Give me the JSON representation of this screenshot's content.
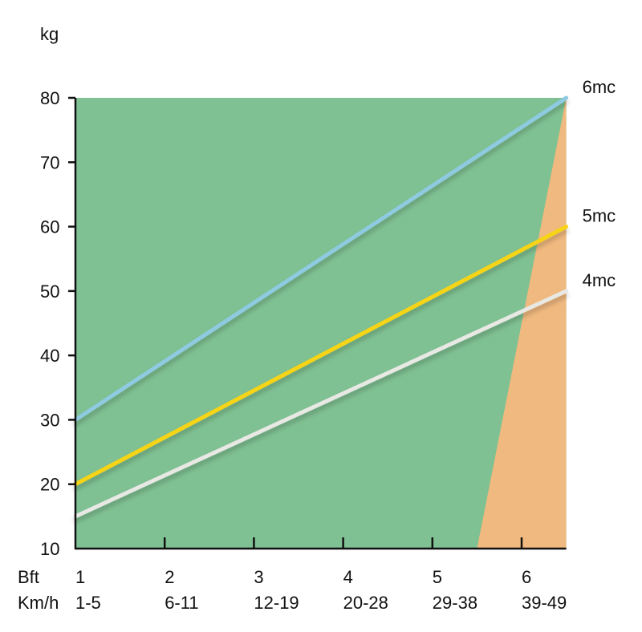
{
  "chart_data": {
    "type": "line",
    "ylabel": "kg",
    "ylim": [
      10,
      80
    ],
    "yticks": [
      10,
      20,
      30,
      40,
      50,
      60,
      70,
      80
    ],
    "xlim": [
      1,
      6.5
    ],
    "xticks": [
      1,
      2,
      3,
      4,
      5,
      6
    ],
    "x_row_labels": [
      "Bft",
      "Km/h"
    ],
    "bft_labels": [
      "1",
      "2",
      "3",
      "4",
      "5",
      "6"
    ],
    "kmh_labels": [
      "1-5",
      "6-11",
      "12-19",
      "20-28",
      "29-38",
      "39-49"
    ],
    "regions": [
      {
        "color": "#7fc192"
      },
      {
        "color": "#f0b97f",
        "boundary": [
          [
            5.5,
            10
          ],
          [
            6.5,
            80
          ]
        ]
      }
    ],
    "series": [
      {
        "name": "6mc",
        "x": [
          1,
          6.5
        ],
        "values": [
          30,
          80
        ],
        "color": "#8ecae0"
      },
      {
        "name": "5mc",
        "x": [
          1,
          6.5
        ],
        "values": [
          20,
          60
        ],
        "color": "#f7d417"
      },
      {
        "name": "4mc",
        "x": [
          1,
          6.5
        ],
        "values": [
          15,
          50
        ],
        "color": "#e8e8e4"
      }
    ]
  }
}
